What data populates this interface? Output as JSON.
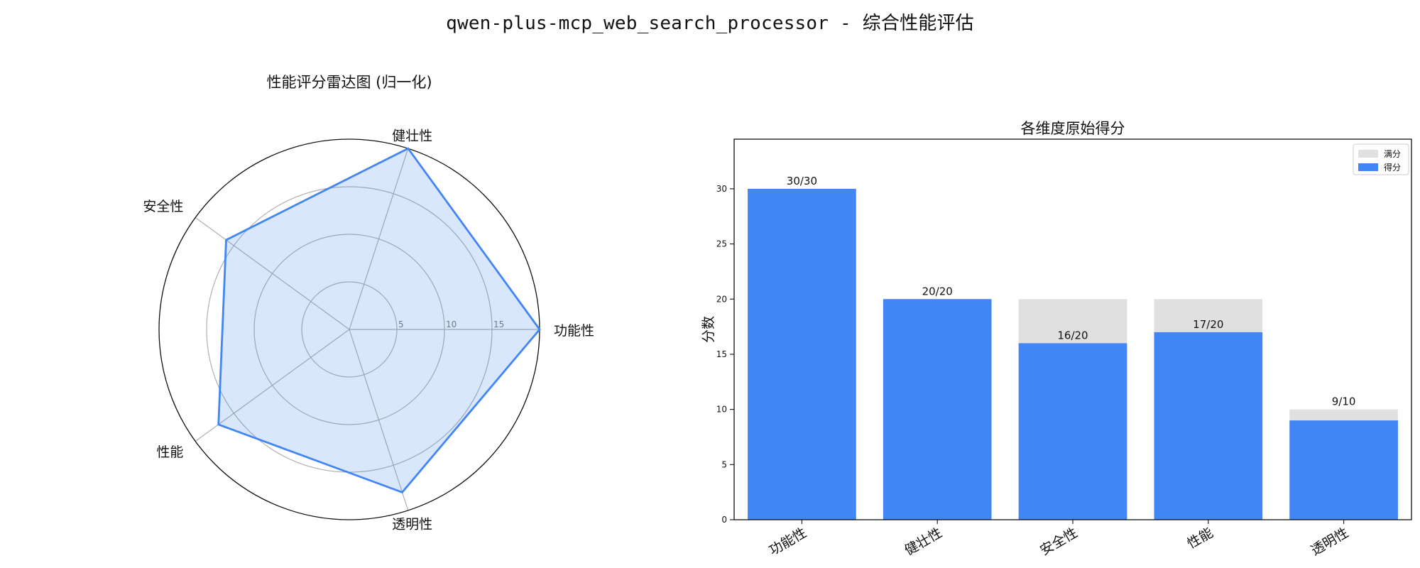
{
  "figure": {
    "title": "qwen-plus-mcp_web_search_processor - 综合性能评估"
  },
  "chart_data": [
    {
      "type": "radar",
      "title": "性能评分雷达图 (归一化)",
      "categories": [
        "功能性",
        "健壮性",
        "安全性",
        "性能",
        "透明性"
      ],
      "values": [
        20,
        20,
        16,
        17,
        18
      ],
      "rlim": [
        0,
        20
      ],
      "radial_ticks": [
        5,
        10,
        15
      ],
      "grid": true,
      "colors": {
        "line": "#4285F4",
        "fill": "#4285F4"
      }
    },
    {
      "type": "bar",
      "title": "各维度原始得分",
      "categories": [
        "功能性",
        "健壮性",
        "安全性",
        "性能",
        "透明性"
      ],
      "series": [
        {
          "name": "满分",
          "values": [
            30,
            20,
            20,
            20,
            10
          ],
          "color": "#E0E0E0"
        },
        {
          "name": "得分",
          "values": [
            30,
            20,
            16,
            17,
            9
          ],
          "color": "#4285F4"
        }
      ],
      "bar_labels": [
        "30/30",
        "20/20",
        "16/20",
        "17/20",
        "9/10"
      ],
      "xlabel": "",
      "ylabel": "分数",
      "ylim": [
        0,
        34.5
      ],
      "yticks": [
        0,
        5,
        10,
        15,
        20,
        25,
        30
      ],
      "legend": "top-right",
      "grid": false
    }
  ]
}
